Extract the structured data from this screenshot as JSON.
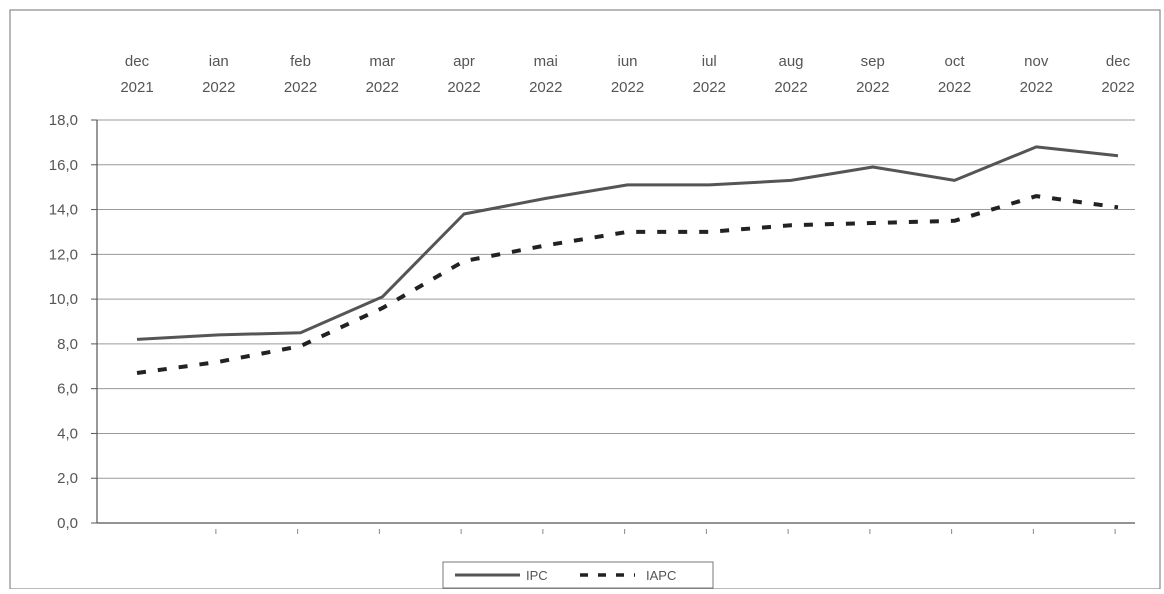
{
  "chart_data": {
    "type": "line",
    "categories": [
      {
        "month": "dec",
        "year": "2021"
      },
      {
        "month": "ian",
        "year": "2022"
      },
      {
        "month": "feb",
        "year": "2022"
      },
      {
        "month": "mar",
        "year": "2022"
      },
      {
        "month": "apr",
        "year": "2022"
      },
      {
        "month": "mai",
        "year": "2022"
      },
      {
        "month": "iun",
        "year": "2022"
      },
      {
        "month": "iul",
        "year": "2022"
      },
      {
        "month": "aug",
        "year": "2022"
      },
      {
        "month": "sep",
        "year": "2022"
      },
      {
        "month": "oct",
        "year": "2022"
      },
      {
        "month": "nov",
        "year": "2022"
      },
      {
        "month": "dec",
        "year": "2022"
      }
    ],
    "series": [
      {
        "name": "IPC",
        "style": "solid",
        "color": "#555555",
        "values": [
          8.2,
          8.4,
          8.5,
          10.1,
          13.8,
          14.5,
          15.1,
          15.1,
          15.3,
          15.9,
          15.3,
          16.8,
          16.4
        ]
      },
      {
        "name": "IAPC",
        "style": "dashed",
        "color": "#222222",
        "values": [
          6.7,
          7.2,
          7.9,
          9.6,
          11.7,
          12.4,
          13.0,
          13.0,
          13.3,
          13.4,
          13.5,
          14.6,
          14.1
        ]
      }
    ],
    "yticks": [
      "0,0",
      "2,0",
      "4,0",
      "6,0",
      "8,0",
      "10,0",
      "12,0",
      "14,0",
      "16,0",
      "18,0"
    ],
    "ylim": [
      0,
      18
    ],
    "xaxis_position": "top",
    "legend_position": "bottom-center",
    "grid": true
  }
}
